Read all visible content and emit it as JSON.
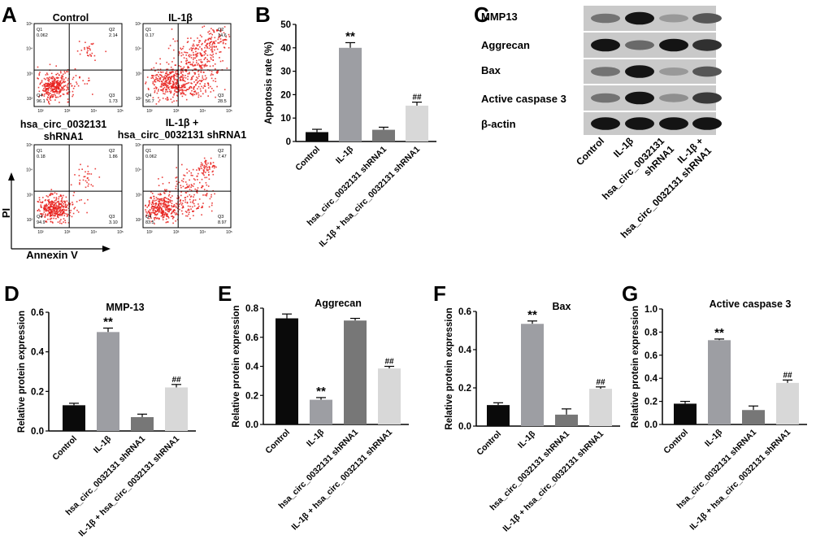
{
  "panel_letters": [
    "A",
    "B",
    "C",
    "D",
    "E",
    "F",
    "G"
  ],
  "panel_a": {
    "plots": [
      {
        "title": "Control",
        "q1": "0.062",
        "q2": "2.14",
        "q3": "1.73",
        "q4": "96.1"
      },
      {
        "title": "IL-1β",
        "q1": "0.17",
        "q2": "14.6",
        "q3": "28.5",
        "q4": "56.7"
      },
      {
        "title_lines": [
          "hsa_circ_0032131",
          "shRNA1"
        ],
        "q1": "0.18",
        "q2": "1.86",
        "q3": "3.10",
        "q4": "94.9"
      },
      {
        "title_lines": [
          "IL-1β +",
          "hsa_circ_0032131 shRNA1"
        ],
        "q1": "0.062",
        "q2": "7.47",
        "q3": "8.97",
        "q4": "83.5"
      }
    ],
    "quadrant_labels": [
      "Q1",
      "Q2",
      "Q3",
      "Q4"
    ],
    "tick_labels": [
      "10²",
      "10³",
      "10⁴",
      "10⁵"
    ],
    "xlabel": "Annexin V",
    "ylabel": "PI",
    "dot_color": "#e8201c"
  },
  "panel_c": {
    "bands": [
      "MMP13",
      "Aggrecan",
      "Bax",
      "Active caspase 3",
      "β-actin"
    ],
    "lanes": [
      "Control",
      "IL-1β",
      "hsa_circ_0032131 shRNA1",
      "IL-1β + hsa_circ_0032131 shRNA1"
    ],
    "lane_label_lines": [
      [
        "Control"
      ],
      [
        "IL-1β"
      ],
      [
        "hsa_circ_0032131",
        "shRNA1"
      ],
      [
        "IL-1β +",
        "hsa_circ_0032131 shRNA1"
      ]
    ]
  },
  "bar_colors": [
    "#0a0a0a",
    "#9d9ea3",
    "#777777",
    "#d8d8d8"
  ],
  "chart_data": [
    {
      "panel": "B",
      "type": "bar",
      "title": "",
      "ylabel": "Apoptosis rate (%)",
      "ylim": [
        0,
        50
      ],
      "yticks": [
        "0",
        "10",
        "20",
        "30",
        "40",
        "50"
      ],
      "categories": [
        "Control",
        "IL-1β",
        "hsa_circ_0032131 shRNA1",
        "IL-1β + hsa_circ_0032131 shRNA1"
      ],
      "values": [
        4,
        40,
        5,
        15.3
      ],
      "errors": [
        1.2,
        2.2,
        1.1,
        1.5
      ],
      "annotations": [
        "",
        "**",
        "",
        "##"
      ]
    },
    {
      "panel": "D",
      "type": "bar",
      "title": "MMP-13",
      "ylabel": "Relative protein expression",
      "ylim": [
        0,
        0.6
      ],
      "yticks": [
        "0.0",
        "0.2",
        "0.4",
        "0.6"
      ],
      "categories": [
        "Control",
        "IL-1β",
        "hsa_circ_0032131 shRNA1",
        "IL-1β + hsa_circ_0032131 shRNA1"
      ],
      "values": [
        0.13,
        0.5,
        0.07,
        0.22
      ],
      "errors": [
        0.01,
        0.02,
        0.015,
        0.015
      ],
      "annotations": [
        "",
        "**",
        "",
        "##"
      ]
    },
    {
      "panel": "E",
      "type": "bar",
      "title": "Aggrecan",
      "ylabel": "Relative protein expression",
      "ylim": [
        0,
        0.8
      ],
      "yticks": [
        "0.0",
        "0.2",
        "0.4",
        "0.6",
        "0.8"
      ],
      "categories": [
        "Control",
        "IL-1β",
        "hsa_circ_0032131 shRNA1",
        "IL-1β + hsa_circ_0032131 shRNA1"
      ],
      "values": [
        0.73,
        0.17,
        0.715,
        0.385
      ],
      "errors": [
        0.03,
        0.015,
        0.015,
        0.015
      ],
      "annotations": [
        "",
        "**",
        "",
        "##"
      ]
    },
    {
      "panel": "F",
      "type": "bar",
      "title": "Bax",
      "ylabel": "Relative protein expression",
      "ylim": [
        0,
        0.6
      ],
      "yticks": [
        "0.0",
        "0.2",
        "0.4",
        "0.6"
      ],
      "categories": [
        "Control",
        "IL-1β",
        "hsa_circ_0032131 shRNA1",
        "IL-1β + hsa_circ_0032131 shRNA1"
      ],
      "values": [
        0.11,
        0.535,
        0.06,
        0.195
      ],
      "errors": [
        0.012,
        0.015,
        0.03,
        0.01
      ],
      "annotations": [
        "",
        "**",
        "",
        "##"
      ]
    },
    {
      "panel": "G",
      "type": "bar",
      "title": "Active caspase 3",
      "ylabel": "Relative protein expression",
      "ylim": [
        0,
        1.0
      ],
      "yticks": [
        "0.0",
        "0.2",
        "0.4",
        "0.6",
        "0.8",
        "1.0"
      ],
      "categories": [
        "Control",
        "IL-1β",
        "hsa_circ_0032131 shRNA1",
        "IL-1β + hsa_circ_0032131 shRNA1"
      ],
      "values": [
        0.18,
        0.73,
        0.125,
        0.36
      ],
      "errors": [
        0.02,
        0.01,
        0.035,
        0.025
      ],
      "annotations": [
        "",
        "**",
        "",
        "##"
      ]
    }
  ]
}
